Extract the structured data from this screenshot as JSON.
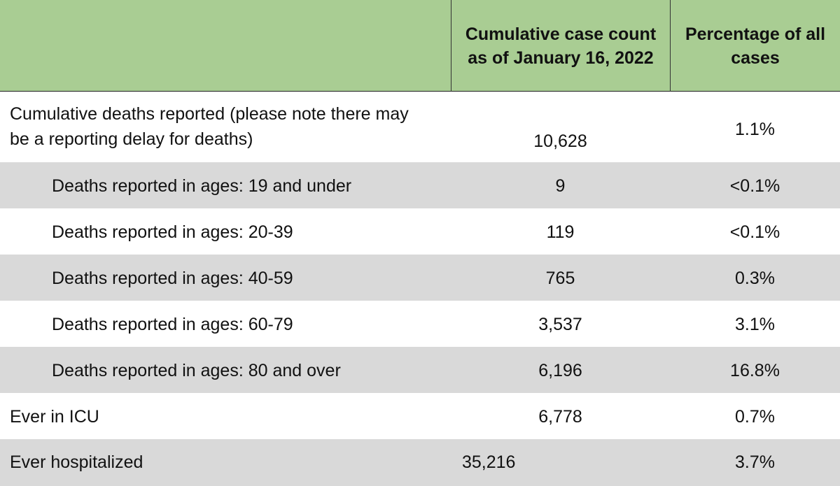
{
  "header": {
    "col_label": "",
    "col_count": "Cumulative case count as of January 16, 2022",
    "col_pct": "Percentage of all cases"
  },
  "rows": [
    {
      "label_line1": "Cumulative deaths reported (please note there may",
      "label_line2": "be a reporting delay for deaths)",
      "count": "10,628",
      "pct": "1.1%"
    },
    {
      "label": "Deaths reported in ages: 19 and under",
      "count": "9",
      "pct": "<0.1%"
    },
    {
      "label": "Deaths reported in ages: 20-39",
      "count": "119",
      "pct": "<0.1%"
    },
    {
      "label": "Deaths reported in ages: 40-59",
      "count": "765",
      "pct": "0.3%"
    },
    {
      "label": "Deaths reported in ages: 60-79",
      "count": "3,537",
      "pct": "3.1%"
    },
    {
      "label": "Deaths reported in ages: 80 and over",
      "count": "6,196",
      "pct": "16.8%"
    },
    {
      "label": "Ever in ICU",
      "count": "6,778",
      "pct": "0.7%"
    },
    {
      "label": "Ever hospitalized",
      "count": "35,216",
      "pct": "3.7%"
    }
  ],
  "colors": {
    "header_bg": "#a9cd93",
    "shaded_row_bg": "#d9d9d9"
  }
}
